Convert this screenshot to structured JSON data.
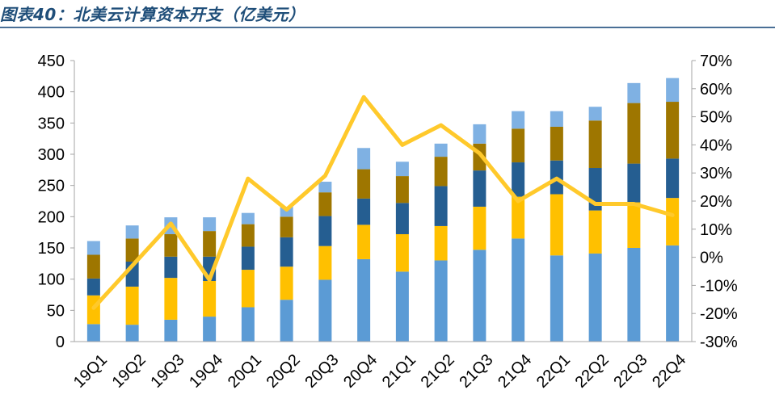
{
  "title": "图表40：北美云计算资本开支（亿美元）",
  "chart_data": {
    "type": "bar",
    "stacked": true,
    "categories": [
      "19Q1",
      "19Q2",
      "19Q3",
      "19Q4",
      "20Q1",
      "20Q2",
      "20Q3",
      "20Q4",
      "21Q1",
      "21Q2",
      "21Q3",
      "21Q4",
      "22Q1",
      "22Q2",
      "22Q3",
      "22Q4"
    ],
    "series": [
      {
        "color": "#5b9bd5",
        "values": [
          28,
          27,
          35,
          40,
          55,
          67,
          99,
          132,
          112,
          130,
          147,
          165,
          138,
          141,
          150,
          154
        ]
      },
      {
        "color": "#ffc000",
        "values": [
          46,
          61,
          67,
          57,
          60,
          53,
          54,
          55,
          60,
          55,
          69,
          67,
          98,
          69,
          73,
          76
        ]
      },
      {
        "color": "#255e91",
        "values": [
          27,
          40,
          34,
          39,
          37,
          47,
          48,
          42,
          50,
          64,
          58,
          55,
          54,
          68,
          62,
          63
        ]
      },
      {
        "color": "#9e7600",
        "values": [
          38,
          37,
          36,
          41,
          36,
          33,
          38,
          47,
          43,
          47,
          43,
          54,
          54,
          76,
          97,
          91
        ]
      },
      {
        "color": "#7fb1e3",
        "values": [
          22,
          21,
          27,
          22,
          18,
          16,
          17,
          34,
          23,
          21,
          31,
          28,
          25,
          22,
          32,
          38
        ]
      }
    ],
    "line": {
      "color": "#ffc92b",
      "axis": "right",
      "values": [
        -18,
        -3,
        12,
        -8,
        28,
        17,
        29,
        57,
        40,
        47,
        37,
        20,
        28,
        19,
        19,
        15
      ]
    },
    "ylim": [
      0,
      450
    ],
    "yticks": [
      0,
      50,
      100,
      150,
      200,
      250,
      300,
      350,
      400,
      450
    ],
    "y2lim": [
      -30,
      70
    ],
    "y2ticks": [
      "-30%",
      "-20%",
      "-10%",
      "0%",
      "10%",
      "20%",
      "30%",
      "40%",
      "50%",
      "60%",
      "70%"
    ],
    "xlabel": "",
    "ylabel": "",
    "legend": "none",
    "grid": false
  }
}
